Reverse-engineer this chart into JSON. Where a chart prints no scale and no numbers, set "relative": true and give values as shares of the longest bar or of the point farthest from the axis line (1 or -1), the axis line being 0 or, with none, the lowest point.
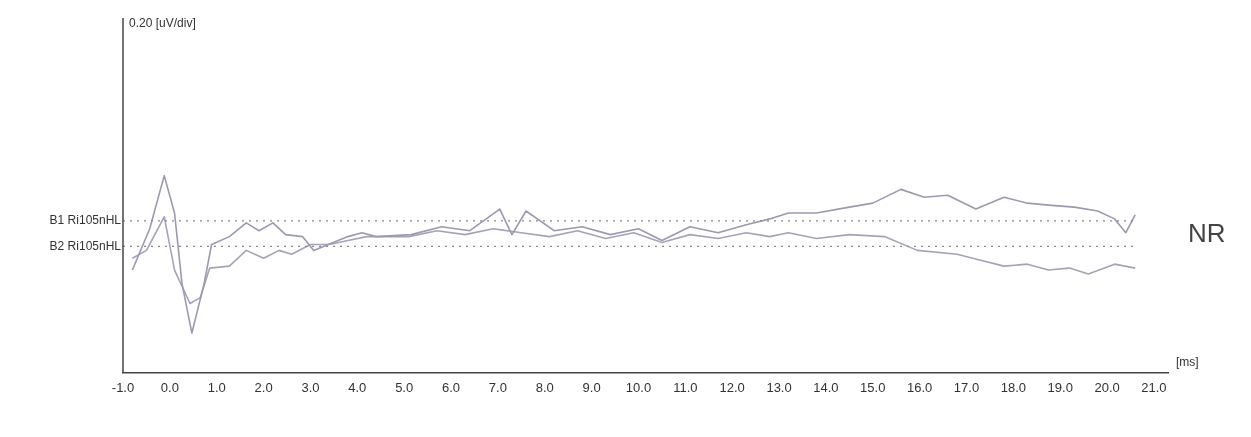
{
  "chart_data": {
    "type": "line",
    "relative": true,
    "xlabel": "[ms]",
    "marker": "none",
    "xlim": [
      -1,
      21.3
    ],
    "xticks": [
      {
        "value": -1,
        "label": "-1.0"
      },
      {
        "value": 0,
        "label": "0.0"
      },
      {
        "value": 1,
        "label": "1.0"
      },
      {
        "value": 2,
        "label": "2.0"
      },
      {
        "value": 3,
        "label": "3.0"
      },
      {
        "value": 4,
        "label": "4.0"
      },
      {
        "value": 5,
        "label": "5.0"
      },
      {
        "value": 6,
        "label": "6.0"
      },
      {
        "value": 7,
        "label": "7.0"
      },
      {
        "value": 8,
        "label": "8.0"
      },
      {
        "value": 9,
        "label": "9.0"
      },
      {
        "value": 10,
        "label": "10.0"
      },
      {
        "value": 11,
        "label": "11.0"
      },
      {
        "value": 12,
        "label": "12.0"
      },
      {
        "value": 13,
        "label": "13.0"
      },
      {
        "value": 14,
        "label": "14.0"
      },
      {
        "value": 15,
        "label": "15.0"
      },
      {
        "value": 16,
        "label": "16.0"
      },
      {
        "value": 17,
        "label": "17.0"
      },
      {
        "value": 18,
        "label": "18.0"
      },
      {
        "value": 19,
        "label": "19.0"
      },
      {
        "value": 20,
        "label": "20.0"
      },
      {
        "value": 21,
        "label": "21.0"
      }
    ],
    "series": [
      {
        "color": "#9a9ab0",
        "x": [
          -0.8,
          -0.43,
          -0.12,
          0.1,
          0.26,
          0.47,
          0.73,
          0.89,
          1.27,
          1.63,
          1.9,
          2.2,
          2.47,
          2.83,
          3.07,
          3.38,
          3.8,
          4.1,
          4.4,
          5.15,
          5.8,
          6.4,
          7.04,
          7.3,
          7.6,
          8.2,
          8.8,
          9.4,
          10.0,
          10.5,
          11.1,
          11.7,
          12.3,
          12.8,
          13.2,
          13.8,
          14.5,
          15.0,
          15.6,
          16.1,
          16.6,
          17.2,
          17.8,
          18.3,
          18.75,
          19.3,
          19.8,
          20.16,
          20.4,
          20.6
        ],
        "values": [
          0.52,
          0.73,
          1.0,
          0.81,
          0.45,
          0.2,
          0.45,
          0.65,
          0.69,
          0.76,
          0.72,
          0.76,
          0.7,
          0.69,
          0.62,
          0.65,
          0.69,
          0.71,
          0.69,
          0.7,
          0.74,
          0.72,
          0.83,
          0.7,
          0.82,
          0.72,
          0.74,
          0.7,
          0.73,
          0.67,
          0.74,
          0.71,
          0.75,
          0.78,
          0.81,
          0.81,
          0.84,
          0.86,
          0.93,
          0.89,
          0.9,
          0.83,
          0.89,
          0.86,
          0.85,
          0.84,
          0.82,
          0.78,
          0.71,
          0.8
        ]
      },
      {
        "color": "#a4a4b8",
        "x": [
          -0.8,
          -0.5,
          -0.12,
          0.1,
          0.43,
          0.65,
          0.85,
          1.27,
          1.63,
          2.0,
          2.33,
          2.6,
          3.0,
          3.4,
          3.8,
          4.2,
          5.1,
          5.7,
          6.3,
          6.9,
          7.5,
          8.1,
          8.7,
          9.3,
          9.9,
          10.5,
          11.1,
          11.7,
          12.3,
          12.8,
          13.2,
          13.8,
          14.5,
          15.25,
          15.95,
          16.8,
          17.3,
          17.8,
          18.3,
          18.75,
          19.2,
          19.6,
          20.16,
          20.6
        ],
        "values": [
          0.58,
          0.62,
          0.79,
          0.52,
          0.35,
          0.38,
          0.53,
          0.54,
          0.62,
          0.58,
          0.62,
          0.6,
          0.65,
          0.65,
          0.67,
          0.69,
          0.69,
          0.72,
          0.7,
          0.73,
          0.71,
          0.69,
          0.72,
          0.68,
          0.71,
          0.66,
          0.7,
          0.68,
          0.71,
          0.69,
          0.71,
          0.68,
          0.7,
          0.69,
          0.62,
          0.6,
          0.57,
          0.54,
          0.55,
          0.52,
          0.53,
          0.5,
          0.55,
          0.53
        ]
      }
    ],
    "ref_lines": [
      {
        "axis": "y",
        "value": 0.77,
        "label": "B1 Ri105nHL",
        "color": "#888888",
        "line_style": "dotted"
      },
      {
        "axis": "y",
        "value": 0.64,
        "label": "B2 Ri105nHL",
        "color": "#888888",
        "line_style": "dotted"
      }
    ],
    "annotations": [
      "0.20 [uV/div]",
      "NR"
    ]
  }
}
